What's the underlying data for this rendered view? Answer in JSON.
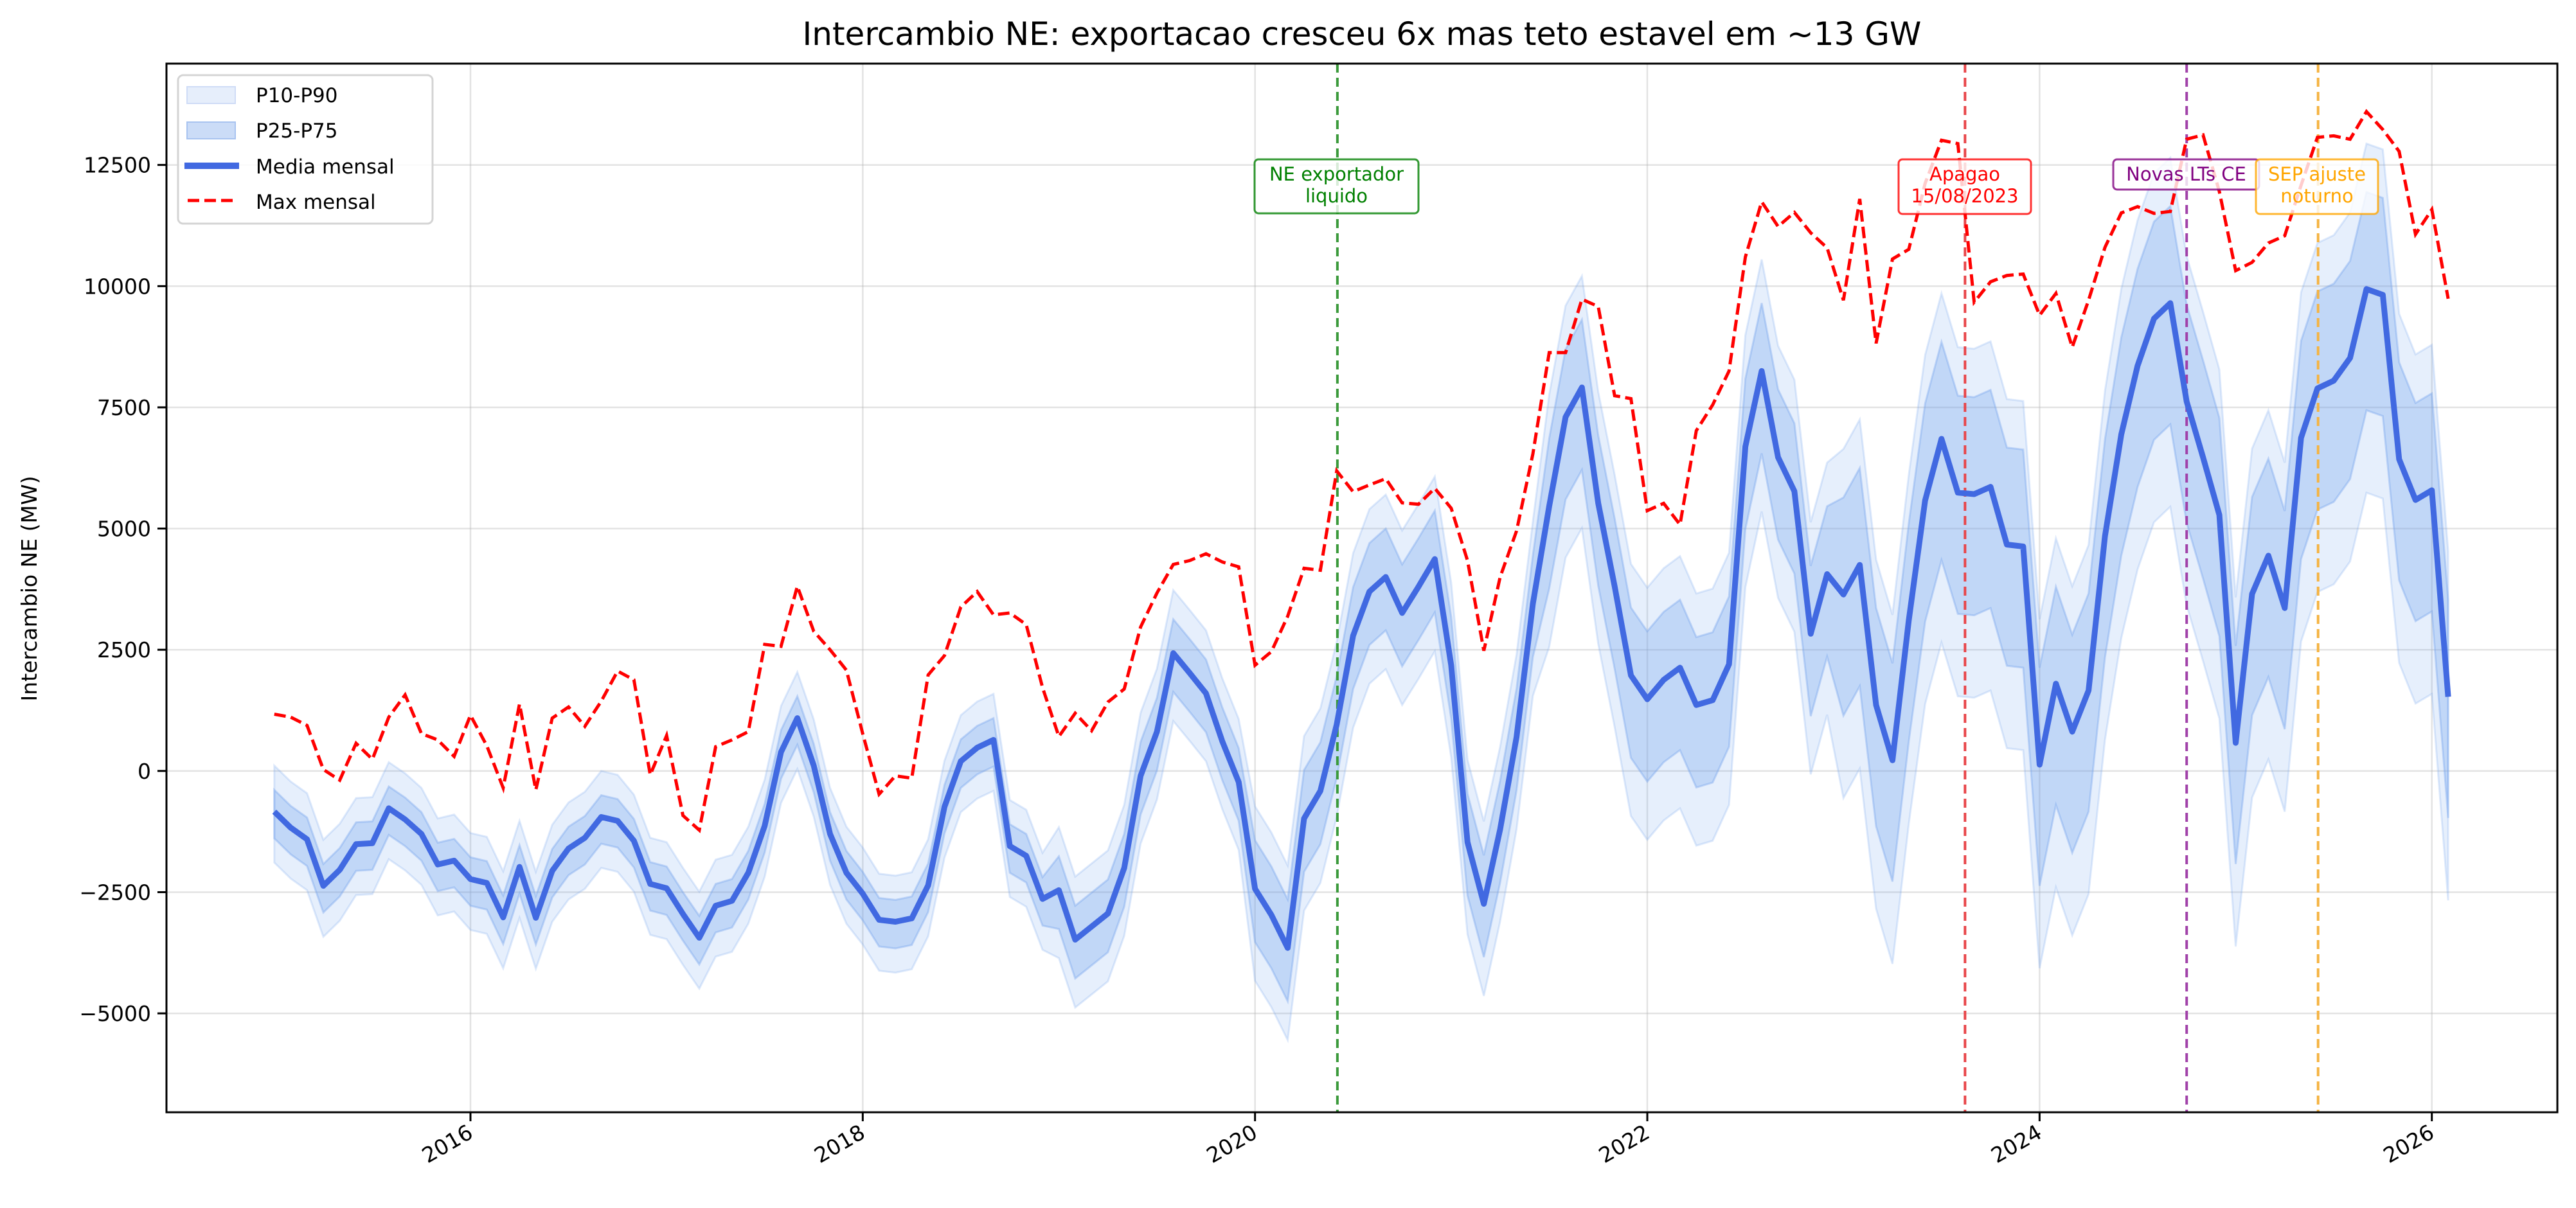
{
  "chart_data": {
    "type": "line",
    "title": "Intercambio NE: exportacao cresceu 6x mas teto estavel em ~13 GW",
    "xlabel": "",
    "ylabel": "Intercambio NE (MW)",
    "x_start": "2015-01",
    "x_frequency": "monthly",
    "x_end": "2026-02",
    "xlim": [
      2014.45,
      2026.64
    ],
    "ylim": [
      -7040,
      14590
    ],
    "grid": true,
    "legend_position": "top-left",
    "x_ticks": [
      2016,
      2018,
      2020,
      2022,
      2024,
      2026
    ],
    "x_tick_labels": [
      "2016",
      "2018",
      "2020",
      "2022",
      "2024",
      "2026"
    ],
    "y_ticks": [
      -5000,
      -2500,
      0,
      2500,
      5000,
      7500,
      10000,
      12500
    ],
    "y_tick_labels": [
      "−5000",
      "−2500",
      "0",
      "2500",
      "5000",
      "7500",
      "10000",
      "12500"
    ],
    "legend": [
      {
        "label": "P10-P90",
        "kind": "band",
        "color": "#c6d7f5"
      },
      {
        "label": "P25-P75",
        "kind": "band",
        "color": "#a8c3f0"
      },
      {
        "label": "Media mensal",
        "kind": "line",
        "color": "#4169e1"
      },
      {
        "label": "Max mensal",
        "kind": "dashed-line",
        "color": "#ff0000"
      }
    ],
    "series": [
      {
        "name": "Media mensal",
        "color": "#4169e1",
        "values": [
          -840,
          -1170,
          -1410,
          -2370,
          -2040,
          -1510,
          -1490,
          -770,
          -1000,
          -1300,
          -1930,
          -1850,
          -2230,
          -2310,
          -3020,
          -1980,
          -3030,
          -2060,
          -1600,
          -1380,
          -950,
          -1030,
          -1440,
          -2330,
          -2420,
          -2950,
          -3440,
          -2780,
          -2680,
          -2100,
          -1130,
          390,
          1090,
          110,
          -1300,
          -2100,
          -2530,
          -3070,
          -3110,
          -3040,
          -2360,
          -740,
          200,
          480,
          640,
          -1550,
          -1750,
          -2640,
          -2460,
          -3480,
          -3210,
          -2940,
          -2000,
          -100,
          810,
          2430,
          2020,
          1600,
          610,
          -230,
          -2430,
          -2970,
          -3650,
          -980,
          -410,
          960,
          2790,
          3700,
          4000,
          3260,
          3800,
          4370,
          2180,
          -1470,
          -2740,
          -1200,
          700,
          3450,
          5460,
          7300,
          7910,
          5520,
          3810,
          1970,
          1480,
          1880,
          2130,
          1360,
          1460,
          2200,
          6690,
          8250,
          6470,
          5770,
          2830,
          4060,
          3640,
          4250,
          1360,
          220,
          3110,
          5580,
          6850,
          5740,
          5710,
          5860,
          4670,
          4630,
          130,
          1800,
          810,
          1660,
          4840,
          6940,
          8360,
          9330,
          9650,
          7620,
          6470,
          5280,
          580,
          3650,
          4440,
          3360,
          6870,
          7890,
          8050,
          8520,
          9940,
          9820,
          6430,
          5590,
          5790,
          1530
        ]
      },
      {
        "name": "Max mensal",
        "color": "#ff0000",
        "values": [
          1170,
          1110,
          940,
          30,
          -190,
          570,
          240,
          1110,
          1570,
          770,
          640,
          300,
          1150,
          520,
          -350,
          1380,
          -390,
          1090,
          1320,
          920,
          1440,
          2060,
          1880,
          -80,
          730,
          -920,
          -1220,
          500,
          640,
          810,
          2610,
          2570,
          3810,
          2880,
          2500,
          2080,
          770,
          -480,
          -100,
          -150,
          1980,
          2380,
          3380,
          3700,
          3220,
          3260,
          3020,
          1720,
          710,
          1190,
          830,
          1420,
          1690,
          2970,
          3670,
          4260,
          4340,
          4480,
          4310,
          4210,
          2180,
          2460,
          3190,
          4180,
          4140,
          6190,
          5760,
          5900,
          6030,
          5530,
          5500,
          5830,
          5420,
          4340,
          2480,
          4000,
          4950,
          6540,
          8630,
          8630,
          9730,
          9580,
          7740,
          7680,
          5370,
          5520,
          5080,
          7020,
          7550,
          8250,
          10600,
          11740,
          11230,
          11520,
          11100,
          10790,
          9710,
          11800,
          8820,
          10560,
          10760,
          12120,
          13010,
          12940,
          9670,
          10090,
          10220,
          10250,
          9400,
          9850,
          8740,
          9710,
          10800,
          11510,
          11640,
          11500,
          11540,
          13030,
          13120,
          11950,
          10320,
          10490,
          10890,
          11040,
          12080,
          13070,
          13100,
          13030,
          13600,
          13230,
          12780,
          11070,
          11580,
          9740
        ]
      }
    ],
    "bands": [
      {
        "name": "P10-P90",
        "color": "#c6d7f5",
        "lower": [
          -1890,
          -2220,
          -2460,
          -3420,
          -3090,
          -2560,
          -2540,
          -1820,
          -2050,
          -2350,
          -2980,
          -2900,
          -3280,
          -3360,
          -4070,
          -3030,
          -4080,
          -3110,
          -2650,
          -2430,
          -2000,
          -2080,
          -2490,
          -3380,
          -3470,
          -4000,
          -4490,
          -3830,
          -3730,
          -3150,
          -2180,
          -660,
          40,
          -940,
          -2350,
          -3150,
          -3580,
          -4120,
          -4160,
          -4090,
          -3410,
          -1790,
          -850,
          -570,
          -410,
          -2600,
          -2800,
          -3690,
          -3860,
          -4880,
          -4610,
          -4340,
          -3400,
          -1500,
          -590,
          1030,
          620,
          200,
          -790,
          -1630,
          -4330,
          -4870,
          -5550,
          -2880,
          -2310,
          -940,
          890,
          1800,
          2100,
          1360,
          1900,
          2470,
          280,
          -3370,
          -4640,
          -3100,
          -1200,
          1550,
          2560,
          4400,
          5010,
          2620,
          910,
          -930,
          -1420,
          -1020,
          -770,
          -1540,
          -1440,
          -700,
          3790,
          5350,
          3570,
          2870,
          -70,
          1160,
          -560,
          50,
          -2840,
          -3980,
          -1090,
          1380,
          2650,
          1540,
          1510,
          1660,
          470,
          430,
          -4070,
          -2400,
          -3390,
          -2540,
          640,
          2740,
          4160,
          5130,
          5450,
          3420,
          2270,
          1080,
          -3620,
          -550,
          240,
          -840,
          2670,
          3690,
          3850,
          4320,
          5740,
          5620,
          2230,
          1390,
          1590,
          -2670
        ],
        "upper": [
          110,
          -220,
          -460,
          -1420,
          -1090,
          -560,
          -540,
          180,
          -50,
          -350,
          -980,
          -900,
          -1280,
          -1360,
          -2070,
          -1030,
          -2080,
          -1110,
          -650,
          -430,
          0,
          -80,
          -490,
          -1380,
          -1470,
          -2000,
          -2490,
          -1830,
          -1730,
          -1150,
          -180,
          1340,
          2040,
          1060,
          -350,
          -1150,
          -1580,
          -2120,
          -2160,
          -2090,
          -1410,
          210,
          1150,
          1430,
          1590,
          -600,
          -800,
          -1690,
          -1160,
          -2180,
          -1910,
          -1640,
          -700,
          1200,
          2110,
          3730,
          3320,
          2900,
          1910,
          1070,
          -730,
          -1270,
          -1950,
          720,
          1290,
          2660,
          4490,
          5400,
          5700,
          4960,
          5500,
          6070,
          3880,
          230,
          -1040,
          500,
          2400,
          5150,
          7760,
          9600,
          10210,
          7820,
          6110,
          4270,
          3780,
          4180,
          4430,
          3660,
          3760,
          4500,
          8990,
          10550,
          8770,
          8070,
          5130,
          6360,
          6640,
          7250,
          4360,
          3220,
          6110,
          8580,
          9850,
          8740,
          8710,
          8860,
          7670,
          7630,
          3130,
          4800,
          3810,
          4660,
          7840,
          9940,
          11360,
          12330,
          12650,
          10620,
          9470,
          8280,
          3580,
          6650,
          7440,
          6360,
          9870,
          10890,
          11050,
          11520,
          12940,
          12820,
          9430,
          8590,
          8790,
          4530
        ]
      },
      {
        "name": "P25-P75",
        "color": "#a8c3f0",
        "lower": [
          -1390,
          -1720,
          -1960,
          -2920,
          -2590,
          -2060,
          -2040,
          -1320,
          -1550,
          -1850,
          -2480,
          -2400,
          -2780,
          -2860,
          -3570,
          -2530,
          -3580,
          -2610,
          -2150,
          -1930,
          -1500,
          -1580,
          -1990,
          -2880,
          -2970,
          -3500,
          -3990,
          -3330,
          -3230,
          -2650,
          -1680,
          -160,
          540,
          -440,
          -1850,
          -2650,
          -3080,
          -3620,
          -3660,
          -3590,
          -2910,
          -1290,
          -350,
          -70,
          90,
          -2100,
          -2300,
          -3190,
          -3260,
          -4280,
          -4010,
          -3740,
          -2800,
          -900,
          10,
          1630,
          1220,
          800,
          -190,
          -1030,
          -3530,
          -4070,
          -4750,
          -2080,
          -1510,
          -140,
          1690,
          2600,
          2900,
          2160,
          2700,
          3270,
          1080,
          -2570,
          -3840,
          -2300,
          -400,
          2350,
          3760,
          5600,
          6210,
          3820,
          2110,
          270,
          -220,
          180,
          430,
          -340,
          -240,
          500,
          4990,
          6550,
          4770,
          4070,
          1130,
          2360,
          1140,
          1750,
          -1140,
          -2280,
          610,
          3080,
          4350,
          3240,
          3210,
          3360,
          2170,
          2130,
          -2370,
          -700,
          -1690,
          -840,
          2340,
          4440,
          5860,
          6830,
          7150,
          5120,
          3970,
          2780,
          -1920,
          1150,
          1940,
          860,
          4370,
          5390,
          5550,
          6020,
          7440,
          7320,
          3930,
          3090,
          3290,
          -970
        ],
        "upper": [
          -390,
          -720,
          -960,
          -1920,
          -1590,
          -1060,
          -1040,
          -320,
          -550,
          -850,
          -1480,
          -1400,
          -1780,
          -1860,
          -2570,
          -1530,
          -2580,
          -1610,
          -1150,
          -930,
          -500,
          -580,
          -990,
          -1880,
          -1970,
          -2500,
          -2990,
          -2330,
          -2230,
          -1650,
          -680,
          840,
          1540,
          560,
          -850,
          -1650,
          -2080,
          -2620,
          -2660,
          -2590,
          -1910,
          -290,
          650,
          930,
          1090,
          -1100,
          -1300,
          -2190,
          -1760,
          -2780,
          -2510,
          -2240,
          -1300,
          600,
          1510,
          3130,
          2720,
          2300,
          1310,
          470,
          -1430,
          -1970,
          -2650,
          20,
          590,
          1960,
          3790,
          4700,
          5000,
          4260,
          4800,
          5370,
          3180,
          -470,
          -1740,
          -200,
          1700,
          4450,
          6860,
          8700,
          9310,
          6920,
          5210,
          3370,
          2880,
          3280,
          3530,
          2760,
          2860,
          3600,
          8090,
          9650,
          7870,
          7170,
          4230,
          5460,
          5640,
          6250,
          3360,
          2220,
          5110,
          7580,
          8850,
          7740,
          7710,
          7860,
          6670,
          6630,
          2130,
          3800,
          2810,
          3660,
          6840,
          8940,
          10360,
          11330,
          11650,
          9620,
          8470,
          7280,
          2580,
          5650,
          6440,
          5360,
          8870,
          9890,
          10050,
          10520,
          11940,
          11820,
          8430,
          7590,
          7790,
          3530
        ]
      }
    ],
    "annotations": [
      {
        "date": 2020.42,
        "lines": [
          "NE exportador",
          "liquido"
        ],
        "color": "#008000",
        "line_color": "#3a9a3a"
      },
      {
        "date": 2023.62,
        "lines": [
          "Apagao",
          "15/08/2023"
        ],
        "color": "#ff0000",
        "line_color": "#e8464a"
      },
      {
        "date": 2024.75,
        "lines": [
          "Novas LTs CE"
        ],
        "color": "#800080",
        "line_color": "#a040a8"
      },
      {
        "date": 2025.42,
        "lines": [
          "SEP ajuste",
          "noturno"
        ],
        "color": "#ffa500",
        "line_color": "#f5b342"
      }
    ]
  }
}
